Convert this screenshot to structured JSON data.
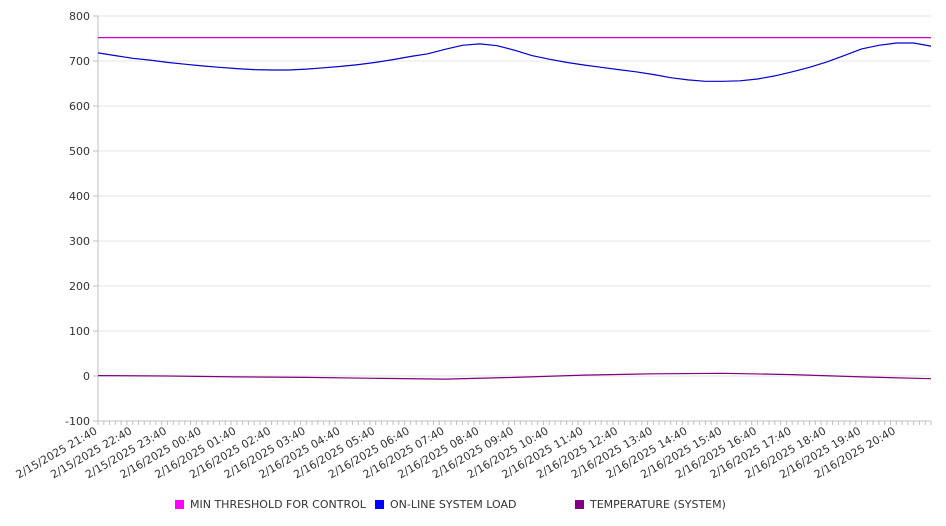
{
  "chart_data": {
    "type": "line",
    "title": "",
    "xlabel": "",
    "ylabel": "",
    "ylim": [
      -100,
      800
    ],
    "yticks": [
      "800",
      "700",
      "600",
      "500",
      "400",
      "300",
      "200",
      "100",
      "0",
      "-100"
    ],
    "xticks": [
      "2/15/2025 21:40",
      "2/15/2025 22:40",
      "2/15/2025 23:40",
      "2/16/2025 00:40",
      "2/16/2025 01:40",
      "2/16/2025 02:40",
      "2/16/2025 03:40",
      "2/16/2025 04:40",
      "2/16/2025 05:40",
      "2/16/2025 06:40",
      "2/16/2025 07:40",
      "2/16/2025 08:40",
      "2/16/2025 09:40",
      "2/16/2025 10:40",
      "2/16/2025 11:40",
      "2/16/2025 12:40",
      "2/16/2025 13:40",
      "2/16/2025 14:40",
      "2/16/2025 15:40",
      "2/16/2025 16:40",
      "2/16/2025 17:40",
      "2/16/2025 18:40",
      "2/16/2025 19:40",
      "2/16/2025 20:40"
    ],
    "grid": true,
    "legend_position": "bottom",
    "series": [
      {
        "name": "MIN THRESHOLD FOR CONTROL",
        "color": "#cc00cc",
        "x": [
          "2/15/2025 21:40",
          "2/16/2025 21:40"
        ],
        "values": [
          752,
          752
        ]
      },
      {
        "name": "ON-LINE SYSTEM LOAD",
        "color": "#0000cc",
        "x": [
          "2/15/2025 21:40",
          "2/15/2025 22:10",
          "2/15/2025 22:40",
          "2/15/2025 23:10",
          "2/15/2025 23:40",
          "2/16/2025 00:10",
          "2/16/2025 00:40",
          "2/16/2025 01:10",
          "2/16/2025 01:40",
          "2/16/2025 02:10",
          "2/16/2025 02:40",
          "2/16/2025 03:10",
          "2/16/2025 03:40",
          "2/16/2025 04:10",
          "2/16/2025 04:40",
          "2/16/2025 05:10",
          "2/16/2025 05:40",
          "2/16/2025 06:10",
          "2/16/2025 06:40",
          "2/16/2025 07:10",
          "2/16/2025 07:40",
          "2/16/2025 08:10",
          "2/16/2025 08:40",
          "2/16/2025 09:10",
          "2/16/2025 09:40",
          "2/16/2025 10:10",
          "2/16/2025 10:40",
          "2/16/2025 11:10",
          "2/16/2025 11:40",
          "2/16/2025 12:10",
          "2/16/2025 12:40",
          "2/16/2025 13:10",
          "2/16/2025 13:40",
          "2/16/2025 14:10",
          "2/16/2025 14:40",
          "2/16/2025 15:10",
          "2/16/2025 15:40",
          "2/16/2025 16:10",
          "2/16/2025 16:40",
          "2/16/2025 17:10",
          "2/16/2025 17:40",
          "2/16/2025 18:10",
          "2/16/2025 18:40",
          "2/16/2025 19:10",
          "2/16/2025 19:40",
          "2/16/2025 20:10",
          "2/16/2025 20:40",
          "2/16/2025 21:10",
          "2/16/2025 21:40"
        ],
        "values": [
          718,
          712,
          706,
          702,
          697,
          693,
          689,
          686,
          683,
          681,
          680,
          680,
          682,
          685,
          688,
          692,
          697,
          703,
          710,
          716,
          726,
          735,
          738,
          734,
          724,
          712,
          704,
          697,
          691,
          686,
          681,
          676,
          670,
          663,
          658,
          655,
          655,
          656,
          660,
          667,
          676,
          686,
          698,
          712,
          727,
          735,
          740,
          740,
          733
        ]
      },
      {
        "name": "TEMPERATURE (SYSTEM)",
        "color": "#800080",
        "x": [
          "2/15/2025 21:40",
          "2/15/2025 23:40",
          "2/16/2025 01:40",
          "2/16/2025 03:40",
          "2/16/2025 05:40",
          "2/16/2025 07:40",
          "2/16/2025 09:40",
          "2/16/2025 11:40",
          "2/16/2025 13:40",
          "2/16/2025 15:40",
          "2/16/2025 17:40",
          "2/16/2025 19:40",
          "2/16/2025 21:40"
        ],
        "values": [
          1,
          0,
          -2,
          -3,
          -5,
          -7,
          -3,
          2,
          5,
          6,
          3,
          -2,
          -6
        ]
      }
    ]
  }
}
